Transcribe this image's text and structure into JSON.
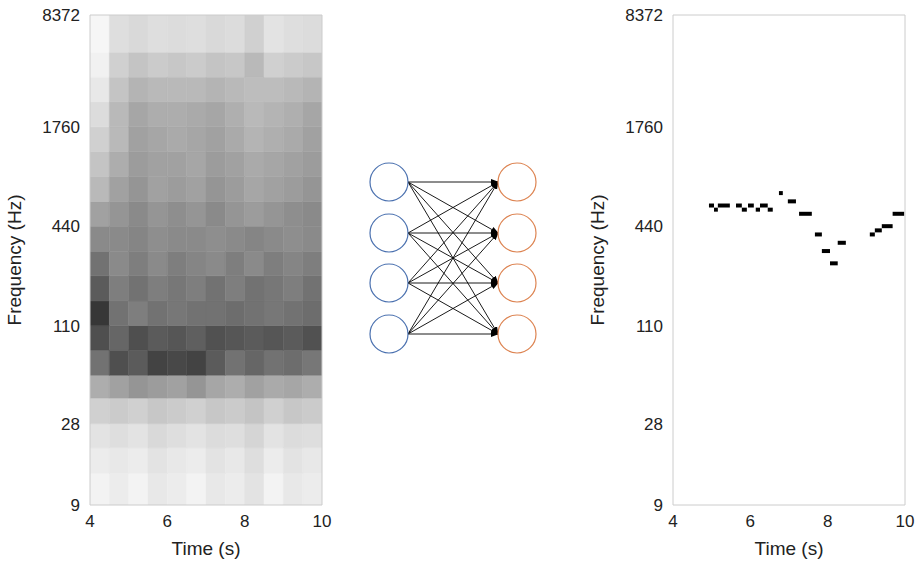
{
  "chart_data": [
    {
      "type": "heatmap",
      "x_label": "Time (s)",
      "y_label": "Frequency (Hz)",
      "xlim": [
        4,
        10
      ],
      "xticks": [
        4,
        6,
        8,
        10
      ],
      "ylim": [
        9,
        8372
      ],
      "yticks": [
        9,
        28,
        110,
        440,
        1760,
        8372
      ],
      "log": "y",
      "grid": false,
      "x_edges": [
        4,
        4.5,
        5,
        5.5,
        6,
        6.5,
        7,
        7.5,
        8,
        8.5,
        9,
        9.5,
        10
      ],
      "y_edges": [
        9,
        14,
        20,
        28,
        40,
        55,
        78,
        110,
        155,
        220,
        310,
        440,
        620,
        880,
        1245,
        1760,
        2490,
        3520,
        4980,
        8372
      ],
      "cells": [
        [
          0.05,
          0.08,
          0.05,
          0.1,
          0.08,
          0.05,
          0.1,
          0.08,
          0.12,
          0.05,
          0.1,
          0.08
        ],
        [
          0.08,
          0.1,
          0.08,
          0.12,
          0.1,
          0.08,
          0.12,
          0.1,
          0.14,
          0.08,
          0.12,
          0.1
        ],
        [
          0.12,
          0.14,
          0.12,
          0.16,
          0.14,
          0.12,
          0.15,
          0.14,
          0.18,
          0.12,
          0.15,
          0.14
        ],
        [
          0.2,
          0.22,
          0.2,
          0.24,
          0.22,
          0.2,
          0.24,
          0.22,
          0.25,
          0.2,
          0.24,
          0.22
        ],
        [
          0.35,
          0.4,
          0.45,
          0.42,
          0.4,
          0.45,
          0.38,
          0.35,
          0.4,
          0.36,
          0.38,
          0.35
        ],
        [
          0.6,
          0.75,
          0.7,
          0.8,
          0.78,
          0.8,
          0.7,
          0.6,
          0.65,
          0.6,
          0.62,
          0.58
        ],
        [
          0.75,
          0.65,
          0.75,
          0.7,
          0.72,
          0.68,
          0.74,
          0.72,
          0.7,
          0.72,
          0.7,
          0.74
        ],
        [
          0.85,
          0.6,
          0.55,
          0.6,
          0.58,
          0.6,
          0.6,
          0.62,
          0.6,
          0.58,
          0.6,
          0.62
        ],
        [
          0.7,
          0.55,
          0.6,
          0.55,
          0.58,
          0.55,
          0.6,
          0.55,
          0.6,
          0.58,
          0.55,
          0.6
        ],
        [
          0.6,
          0.5,
          0.55,
          0.5,
          0.55,
          0.52,
          0.5,
          0.55,
          0.5,
          0.55,
          0.52,
          0.55
        ],
        [
          0.5,
          0.5,
          0.52,
          0.48,
          0.5,
          0.5,
          0.48,
          0.5,
          0.52,
          0.5,
          0.48,
          0.5
        ],
        [
          0.4,
          0.45,
          0.5,
          0.45,
          0.48,
          0.45,
          0.5,
          0.45,
          0.42,
          0.45,
          0.48,
          0.5
        ],
        [
          0.3,
          0.4,
          0.45,
          0.4,
          0.42,
          0.4,
          0.45,
          0.42,
          0.38,
          0.4,
          0.42,
          0.45
        ],
        [
          0.25,
          0.35,
          0.42,
          0.4,
          0.4,
          0.38,
          0.42,
          0.4,
          0.36,
          0.38,
          0.4,
          0.42
        ],
        [
          0.2,
          0.3,
          0.4,
          0.38,
          0.36,
          0.38,
          0.4,
          0.36,
          0.32,
          0.34,
          0.36,
          0.4
        ],
        [
          0.15,
          0.3,
          0.38,
          0.35,
          0.35,
          0.36,
          0.38,
          0.34,
          0.3,
          0.32,
          0.34,
          0.38
        ],
        [
          0.1,
          0.25,
          0.32,
          0.3,
          0.3,
          0.3,
          0.32,
          0.3,
          0.28,
          0.28,
          0.3,
          0.32
        ],
        [
          0.06,
          0.2,
          0.25,
          0.22,
          0.24,
          0.22,
          0.25,
          0.24,
          0.3,
          0.2,
          0.22,
          0.24
        ],
        [
          0.04,
          0.14,
          0.16,
          0.14,
          0.15,
          0.14,
          0.16,
          0.15,
          0.2,
          0.12,
          0.14,
          0.15
        ]
      ]
    },
    {
      "type": "piano_roll",
      "x_label": "Time (s)",
      "y_label": "Frequency (Hz)",
      "xlim": [
        4,
        10
      ],
      "xticks": [
        4,
        6,
        8,
        10
      ],
      "ylim": [
        9,
        8372
      ],
      "yticks": [
        9,
        28,
        110,
        440,
        1760,
        8372
      ],
      "log": "y",
      "grid": false,
      "color": "#000000",
      "notes": {
        "onset": [
          4.93,
          5.06,
          5.16,
          5.63,
          5.78,
          5.94,
          6.14,
          6.25,
          6.45,
          6.74,
          6.97,
          7.26,
          7.67,
          7.85,
          8.06,
          8.26,
          9.09,
          9.22,
          9.4,
          9.68
        ],
        "offset": [
          5.06,
          5.16,
          5.47,
          5.78,
          5.91,
          6.09,
          6.25,
          6.45,
          6.58,
          6.84,
          7.18,
          7.59,
          7.85,
          8.06,
          8.26,
          8.47,
          9.22,
          9.4,
          9.68,
          9.98
        ],
        "frequency": [
          587,
          554,
          587,
          587,
          554,
          587,
          554,
          587,
          554,
          698,
          622,
          523,
          392,
          311,
          262,
          349,
          392,
          415,
          440,
          523
        ]
      }
    }
  ]
}
